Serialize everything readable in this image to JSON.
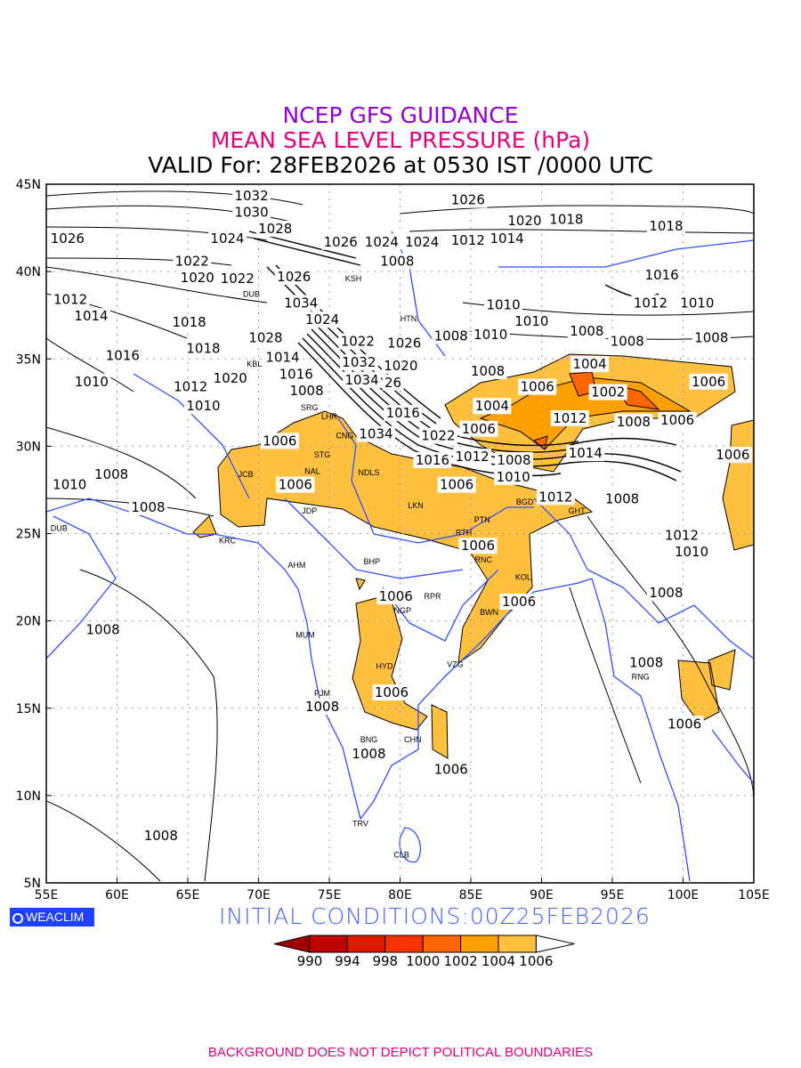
{
  "title": {
    "line1": "NCEP GFS GUIDANCE",
    "line2": "MEAN SEA LEVEL PRESSURE (hPa)",
    "line3": "VALID For: 28FEB2026 at 0530 IST /0000 UTC"
  },
  "colors": {
    "line1": "#9400d3",
    "line2": "#e6007e",
    "coast": "#3050ff",
    "shade1006": "#ffc040",
    "shade1004": "#ffa000",
    "shade1002": "#ff6600"
  },
  "axes": {
    "lon_ticks": [
      "55E",
      "60E",
      "65E",
      "70E",
      "75E",
      "80E",
      "85E",
      "90E",
      "95E",
      "100E",
      "105E"
    ],
    "lat_ticks": [
      "5N",
      "10N",
      "15N",
      "20N",
      "25N",
      "30N",
      "35N",
      "40N",
      "45N"
    ],
    "lon_range": [
      55,
      105
    ],
    "lat_range": [
      5,
      45
    ]
  },
  "stations": [
    {
      "code": "KSH",
      "lon": 76.7,
      "lat": 39.6
    },
    {
      "code": "HTN",
      "lon": 80.6,
      "lat": 37.3
    },
    {
      "code": "SRG",
      "lon": 73.6,
      "lat": 32.2
    },
    {
      "code": "LHR",
      "lon": 75.0,
      "lat": 31.7
    },
    {
      "code": "CNG",
      "lon": 77.1,
      "lat": 30.6
    },
    {
      "code": "STG",
      "lon": 74.5,
      "lat": 29.5
    },
    {
      "code": "NAL",
      "lon": 73.8,
      "lat": 28.2
    },
    {
      "code": "NDLS",
      "lon": 77.8,
      "lat": 28.5
    },
    {
      "code": "JCB",
      "lon": 69.1,
      "lat": 28.4
    },
    {
      "code": "JDP",
      "lon": 73.6,
      "lat": 26.3
    },
    {
      "code": "LKN",
      "lon": 81.1,
      "lat": 26.6
    },
    {
      "code": "PTN",
      "lon": 85.8,
      "lat": 25.8
    },
    {
      "code": "RTH",
      "lon": 84.5,
      "lat": 24.7
    },
    {
      "code": "RNC",
      "lon": 85.9,
      "lat": 23.5
    },
    {
      "code": "KOL",
      "lon": 88.7,
      "lat": 22.5
    },
    {
      "code": "BHP",
      "lon": 78.0,
      "lat": 23.4
    },
    {
      "code": "AHM",
      "lon": 72.7,
      "lat": 23.2
    },
    {
      "code": "DUB",
      "lon": 55.9,
      "lat": 25.3
    },
    {
      "code": "KRC",
      "lon": 67.8,
      "lat": 24.6
    },
    {
      "code": "GHT",
      "lon": 92.3,
      "lat": 26.4
    },
    {
      "code": "BGD",
      "lon": 89.0,
      "lat": 26.9
    },
    {
      "code": "RPR",
      "lon": 82.3,
      "lat": 21.4
    },
    {
      "code": "NGP",
      "lon": 79.8,
      "lat": 21.4
    },
    {
      "code": "BWN",
      "lon": 86.3,
      "lat": 20.5
    },
    {
      "code": "MUM",
      "lon": 73.3,
      "lat": 19.2
    },
    {
      "code": "HYD",
      "lon": 78.9,
      "lat": 17.4
    },
    {
      "code": "VZG",
      "lon": 83.9,
      "lat": 17.5
    },
    {
      "code": "PJM",
      "lon": 74.5,
      "lat": 15.6
    },
    {
      "code": "CHN",
      "lon": 80.9,
      "lat": 13.2
    },
    {
      "code": "BNG",
      "lon": 77.8,
      "lat": 12.7
    },
    {
      "code": "TRV",
      "lon": 77.2,
      "lat": 8.4
    },
    {
      "code": "CLB",
      "lon": 80.1,
      "lat": 6.6
    },
    {
      "code": "RNG",
      "lon": 96.8,
      "lat": 16.9
    },
    {
      "code": "KBL",
      "lon": 69.7,
      "lat": 34.7
    },
    {
      "code": "DUB",
      "lon": 69.5,
      "lat": 38.7
    }
  ],
  "contour_labels": [
    {
      "text": "1032",
      "lon": 69.5,
      "lat": 44.7
    },
    {
      "text": "1030",
      "lon": 69.5,
      "lat": 43.9
    },
    {
      "text": "1026",
      "lon": 56.5,
      "lat": 41.9
    },
    {
      "text": "1028",
      "lon": 70.8,
      "lat": 42.6
    },
    {
      "text": "1024",
      "lon": 67.8,
      "lat": 41.9
    },
    {
      "text": "1022",
      "lon": 65.3,
      "lat": 40.6
    },
    {
      "text": "1020",
      "lon": 65.3,
      "lat": 40.2
    },
    {
      "text": "1026",
      "lon": 75.8,
      "lat": 41.7
    },
    {
      "text": "1024",
      "lon": 78.2,
      "lat": 41.7
    },
    {
      "text": "1024",
      "lon": 80.8,
      "lat": 41.7
    },
    {
      "text": "1012",
      "lon": 84.8,
      "lat": 41.8
    },
    {
      "text": "1014",
      "lon": 86.8,
      "lat": 41.9
    },
    {
      "text": "1026",
      "lon": 84.8,
      "lat": 44.1
    },
    {
      "text": "1020",
      "lon": 88.8,
      "lat": 42.9
    },
    {
      "text": "1018",
      "lon": 91.0,
      "lat": 43.0
    },
    {
      "text": "1018",
      "lon": 98.8,
      "lat": 42.6
    },
    {
      "text": "1008",
      "lon": 79.8,
      "lat": 40.6
    },
    {
      "text": "1022",
      "lon": 67.5,
      "lat": 39.6
    },
    {
      "text": "1026",
      "lon": 72.5,
      "lat": 39.7
    },
    {
      "text": "1012",
      "lon": 56.2,
      "lat": 38.4
    },
    {
      "text": "1014",
      "lon": 57.8,
      "lat": 37.6
    },
    {
      "text": "1018",
      "lon": 65.1,
      "lat": 37.1
    },
    {
      "text": "1016",
      "lon": 60.4,
      "lat": 35.2
    },
    {
      "text": "1018",
      "lon": 66.1,
      "lat": 35.6
    },
    {
      "text": "1010",
      "lon": 58.2,
      "lat": 33.7
    },
    {
      "text": "1012",
      "lon": 65.2,
      "lat": 33.4
    },
    {
      "text": "1020",
      "lon": 67.5,
      "lat": 33.9
    },
    {
      "text": "1010",
      "lon": 66.1,
      "lat": 32.3
    },
    {
      "text": "1034",
      "lon": 73.0,
      "lat": 38.2
    },
    {
      "text": "1024",
      "lon": 74.5,
      "lat": 37.6
    },
    {
      "text": "1028",
      "lon": 70.5,
      "lat": 36.2
    },
    {
      "text": "1022",
      "lon": 77.0,
      "lat": 36.0
    },
    {
      "text": "1026",
      "lon": 80.3,
      "lat": 35.9
    },
    {
      "text": "1008",
      "lon": 83.6,
      "lat": 36.3
    },
    {
      "text": "1010",
      "lon": 86.4,
      "lat": 36.4
    },
    {
      "text": "1010",
      "lon": 87.3,
      "lat": 38.1
    },
    {
      "text": "1010",
      "lon": 89.3,
      "lat": 37.4
    },
    {
      "text": "1014",
      "lon": 71.7,
      "lat": 35.1
    },
    {
      "text": "1016",
      "lon": 71.9,
      "lat": 35.3
    },
    {
      "text": "1032",
      "lon": 77.1,
      "lat": 34.8
    },
    {
      "text": "1020",
      "lon": 79.8,
      "lat": 34.6
    },
    {
      "text": "1034",
      "lon": 77.3,
      "lat": 33.9
    },
    {
      "text": "26",
      "lon": 79.5,
      "lat": 33.9
    },
    {
      "text": "1008",
      "lon": 73.4,
      "lat": 33.9
    },
    {
      "text": "1016",
      "lon": 80.2,
      "lat": 31.9
    },
    {
      "text": "1034",
      "lon": 78.3,
      "lat": 30.7
    },
    {
      "text": "1022",
      "lon": 82.7,
      "lat": 30.6
    },
    {
      "text": "1006",
      "lon": 84.3,
      "lat": 31.0
    },
    {
      "text": "1004",
      "lon": 86.5,
      "lat": 32.3
    },
    {
      "text": "1006",
      "lon": 89.7,
      "lat": 33.4
    },
    {
      "text": "1008",
      "lon": 86.2,
      "lat": 34.3
    },
    {
      "text": "1004",
      "lon": 93.4,
      "lat": 34.7
    },
    {
      "text": "1002",
      "lon": 94.7,
      "lat": 33.1
    },
    {
      "text": "1006",
      "lon": 101.8,
      "lat": 33.7
    },
    {
      "text": "1008",
      "lon": 93.2,
      "lat": 36.6
    },
    {
      "text": "1008",
      "lon": 95.3,
      "lat": 36.0
    },
    {
      "text": "1008",
      "lon": 102.0,
      "lat": 36.2
    },
    {
      "text": "1016",
      "lon": 98.5,
      "lat": 39.8
    },
    {
      "text": "1012",
      "lon": 97.7,
      "lat": 38.2
    },
    {
      "text": "1010",
      "lon": 101.0,
      "lat": 38.2
    },
    {
      "text": "1012",
      "lon": 92.0,
      "lat": 31.6
    },
    {
      "text": "1008",
      "lon": 96.5,
      "lat": 31.4
    },
    {
      "text": "1006",
      "lon": 99.6,
      "lat": 31.5
    },
    {
      "text": "1014",
      "lon": 93.1,
      "lat": 29.6
    },
    {
      "text": "1012",
      "lon": 85.1,
      "lat": 29.4
    },
    {
      "text": "1016",
      "lon": 83.8,
      "lat": 29.2
    },
    {
      "text": "1008",
      "lon": 87.8,
      "lat": 29.2
    },
    {
      "text": "1010",
      "lon": 88.0,
      "lat": 28.5
    },
    {
      "text": "1006",
      "lon": 84.0,
      "lat": 27.8
    },
    {
      "text": "1012",
      "lon": 91.0,
      "lat": 27.1
    },
    {
      "text": "1008",
      "lon": 95.7,
      "lat": 27.0
    },
    {
      "text": "1006",
      "lon": 103.7,
      "lat": 29.6
    },
    {
      "text": "1012",
      "lon": 99.9,
      "lat": 24.9
    },
    {
      "text": "1010",
      "lon": 100.6,
      "lat": 24.3
    },
    {
      "text": "1006",
      "lon": 71.5,
      "lat": 30.3
    },
    {
      "text": "1006",
      "lon": 72.6,
      "lat": 27.8
    },
    {
      "text": "1008",
      "lon": 59.6,
      "lat": 28.4
    },
    {
      "text": "1010",
      "lon": 56.4,
      "lat": 27.8
    },
    {
      "text": "1008",
      "lon": 62.2,
      "lat": 26.5
    },
    {
      "text": "1006",
      "lon": 85.5,
      "lat": 24.3
    },
    {
      "text": "1006",
      "lon": 79.7,
      "lat": 21.4
    },
    {
      "text": "1006",
      "lon": 88.4,
      "lat": 21.1
    },
    {
      "text": "1008",
      "lon": 98.8,
      "lat": 21.6
    },
    {
      "text": "1008",
      "lon": 59.0,
      "lat": 19.5
    },
    {
      "text": "1008",
      "lon": 97.4,
      "lat": 17.6
    },
    {
      "text": "1006",
      "lon": 79.4,
      "lat": 15.9
    },
    {
      "text": "1008",
      "lon": 74.5,
      "lat": 15.1
    },
    {
      "text": "1006",
      "lon": 100.1,
      "lat": 14.1
    },
    {
      "text": "1008",
      "lon": 77.8,
      "lat": 12.4
    },
    {
      "text": "1006",
      "lon": 83.6,
      "lat": 11.5
    },
    {
      "text": "1008",
      "lon": 63.1,
      "lat": 7.7
    }
  ],
  "legend": {
    "labels": [
      "990",
      "994",
      "998",
      "1000",
      "1002",
      "1004",
      "1006"
    ],
    "colors": [
      "#a00000",
      "#c00000",
      "#e01a00",
      "#ff3300",
      "#ff6600",
      "#ffa000",
      "#ffc040",
      "#ffffff"
    ]
  },
  "branding": "WEACLIM",
  "initial_conditions": "INITIAL  CONDITIONS:00Z25FEB2026",
  "footer": "BACKGROUND DOES NOT DEPICT POLITICAL BOUNDARIES"
}
